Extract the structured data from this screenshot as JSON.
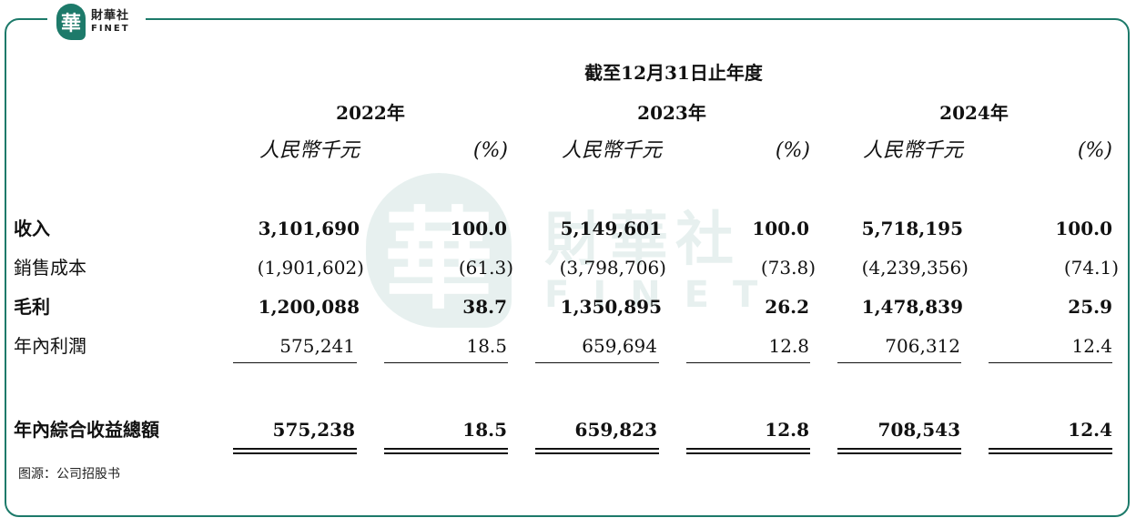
{
  "brand": {
    "logo_char": "華",
    "name_cn": "財華社",
    "name_en": "FINET"
  },
  "header": {
    "period": "截至12月31日止年度",
    "years": [
      "2022年",
      "2023年",
      "2024年"
    ],
    "unit_amount": "人民幣千元",
    "unit_pct": "(%)"
  },
  "rows": [
    {
      "label": "收入",
      "bold": true,
      "values": [
        "3,101,690",
        "100.0",
        "5,149,601",
        "100.0",
        "5,718,195",
        "100.0"
      ]
    },
    {
      "label": "銷售成本",
      "bold": false,
      "values": [
        "(1,901,602)",
        "(61.3)",
        "(3,798,706)",
        "(73.8)",
        "(4,239,356)",
        "(74.1)"
      ]
    },
    {
      "label": "毛利",
      "bold": true,
      "values": [
        "1,200,088",
        "38.7",
        "1,350,895",
        "26.2",
        "1,478,839",
        "25.9"
      ]
    },
    {
      "label": "年內利潤",
      "bold": false,
      "values": [
        "575,241",
        "18.5",
        "659,694",
        "12.8",
        "706,312",
        "12.4"
      ]
    },
    {
      "label": "年內綜合收益總額",
      "bold": true,
      "values": [
        "575,238",
        "18.5",
        "659,823",
        "12.8",
        "708,543",
        "12.4"
      ]
    }
  ],
  "source": "图源：公司招股书"
}
